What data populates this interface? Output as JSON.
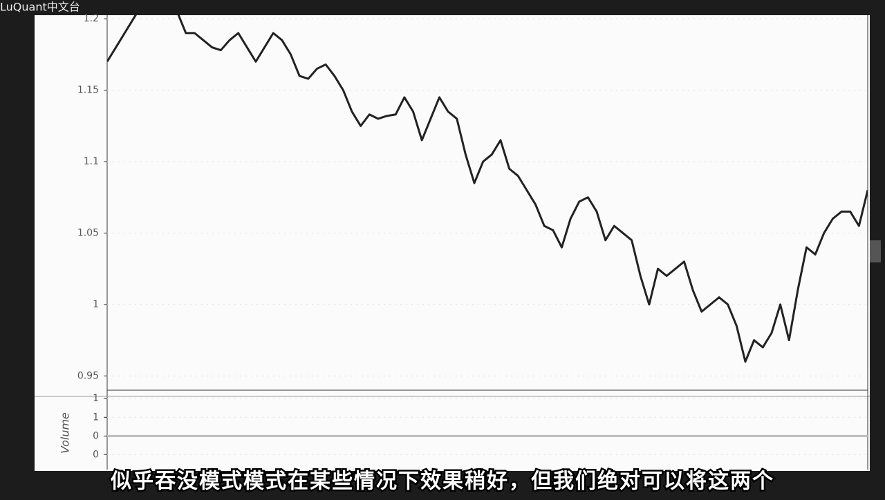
{
  "watermark": "LuQuant中文台",
  "subtitle": "似乎吞没模式模式在某些情况下效果稍好，但我们绝对可以将这两个",
  "chart_data": [
    {
      "type": "line",
      "color": "#222222",
      "ylim": [
        0.94,
        1.2025
      ],
      "yticks": [
        0.95,
        1,
        1.05,
        1.1,
        1.15,
        1.2
      ],
      "grid": true,
      "values": [
        1.17,
        1.18,
        1.19,
        1.2,
        1.21,
        1.215,
        1.22,
        1.215,
        1.205,
        1.19,
        1.19,
        1.185,
        1.18,
        1.178,
        1.185,
        1.19,
        1.18,
        1.17,
        1.18,
        1.19,
        1.185,
        1.175,
        1.16,
        1.158,
        1.165,
        1.168,
        1.16,
        1.15,
        1.135,
        1.125,
        1.133,
        1.13,
        1.132,
        1.133,
        1.145,
        1.135,
        1.115,
        1.13,
        1.145,
        1.135,
        1.13,
        1.105,
        1.085,
        1.1,
        1.105,
        1.115,
        1.095,
        1.09,
        1.08,
        1.07,
        1.055,
        1.052,
        1.04,
        1.06,
        1.072,
        1.075,
        1.065,
        1.045,
        1.055,
        1.05,
        1.045,
        1.02,
        1.0,
        1.025,
        1.02,
        1.025,
        1.03,
        1.01,
        0.995,
        1.0,
        1.005,
        1.0,
        0.985,
        0.96,
        0.975,
        0.97,
        0.98,
        1.0,
        0.975,
        1.01,
        1.04,
        1.035,
        1.05,
        1.06,
        1.065,
        1.065,
        1.055,
        1.08
      ]
    },
    {
      "type": "line",
      "y_label": "Volume",
      "color": "#bbbbbb",
      "ylim": [
        -0.9,
        1.06
      ],
      "yticks": [
        1,
        {
          "value": 0.5,
          "label": "1"
        },
        0,
        {
          "value": -0.5,
          "label": "0"
        }
      ],
      "grid": true,
      "values": [
        0,
        0
      ]
    }
  ]
}
